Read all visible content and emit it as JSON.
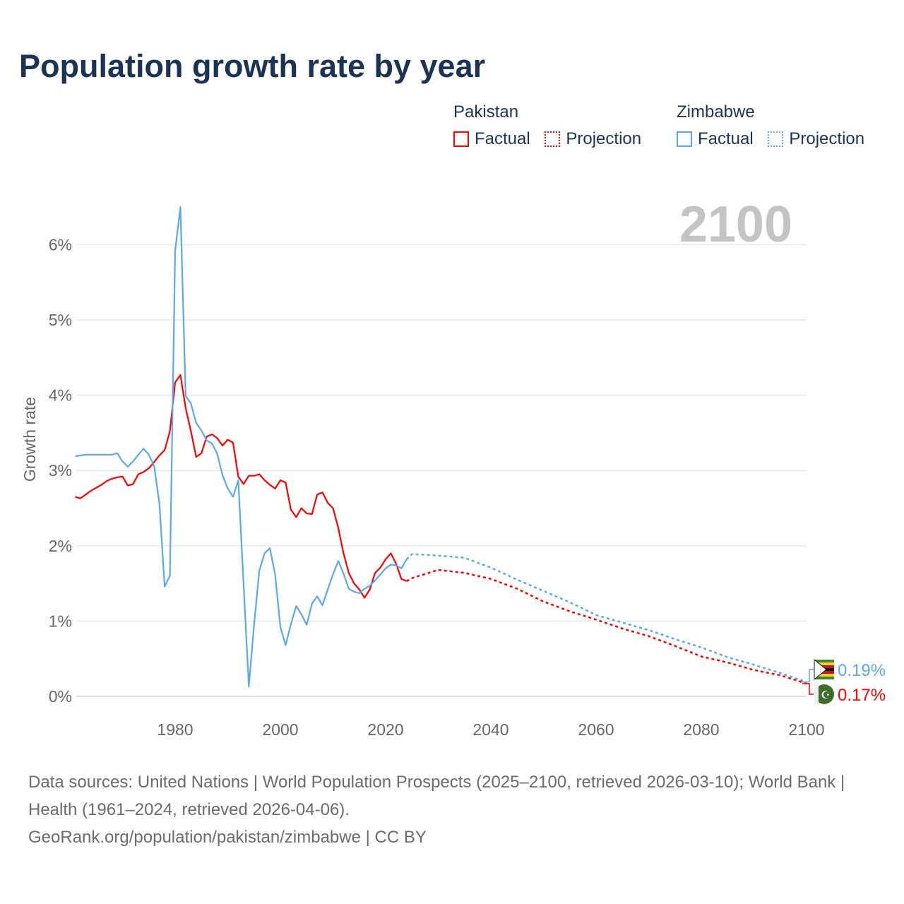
{
  "title": "Population growth rate by year",
  "legend": {
    "groups": [
      {
        "name": "Pakistan",
        "color": "#ff0000",
        "factual": "Factual",
        "projection": "Projection"
      },
      {
        "name": "Zimbabwe",
        "color": "#5aa9ee",
        "factual": "Factual",
        "projection": "Projection"
      }
    ]
  },
  "year_label": "2100",
  "footer": {
    "sources": "Data sources: United Nations | World Population Prospects (2025–2100, retrieved 2026-03-10); World Bank | Health (1961–2024, retrieved 2026-04-06).",
    "credit": "GeoRank.org/population/pakistan/zimbabwe | CC BY"
  },
  "chart_data": {
    "type": "line",
    "title": "Population growth rate by year",
    "xlabel": "",
    "ylabel": "Growth rate",
    "xlim": [
      1961,
      2100
    ],
    "ylim": [
      0,
      6.5
    ],
    "x_ticks": [
      1980,
      2000,
      2020,
      2040,
      2060,
      2080,
      2100
    ],
    "x_tick_labels": [
      "1980",
      "2000",
      "2020",
      "2040",
      "2060",
      "2080",
      "2100"
    ],
    "y_ticks": [
      0,
      1,
      2,
      3,
      4,
      5,
      6
    ],
    "y_tick_labels": [
      "0%",
      "1%",
      "2%",
      "3%",
      "4%",
      "5%",
      "6%"
    ],
    "grid": true,
    "legend_position": "top-right",
    "series": [
      {
        "name": "Pakistan",
        "color": "#ff0000",
        "end_label": "0.17%",
        "factual": {
          "x_start": 1961,
          "values": [
            2.65,
            2.63,
            2.68,
            2.73,
            2.77,
            2.81,
            2.86,
            2.89,
            2.91,
            2.92,
            2.8,
            2.82,
            2.95,
            2.98,
            3.03,
            3.11,
            3.2,
            3.27,
            3.52,
            4.17,
            4.27,
            3.83,
            3.52,
            3.18,
            3.23,
            3.45,
            3.48,
            3.43,
            3.33,
            3.41,
            3.37,
            2.92,
            2.82,
            2.93,
            2.93,
            2.95,
            2.87,
            2.81,
            2.76,
            2.87,
            2.84,
            2.48,
            2.38,
            2.5,
            2.43,
            2.42,
            2.68,
            2.71,
            2.57,
            2.5,
            2.24,
            1.9,
            1.64,
            1.5,
            1.42,
            1.31,
            1.42,
            1.64,
            1.71,
            1.82,
            1.9,
            1.76,
            1.56,
            1.53
          ]
        },
        "projection": {
          "x": [
            2024,
            2025,
            2030,
            2035,
            2040,
            2045,
            2050,
            2055,
            2060,
            2065,
            2070,
            2075,
            2080,
            2085,
            2090,
            2095,
            2100
          ],
          "values": [
            1.53,
            1.57,
            1.68,
            1.64,
            1.56,
            1.43,
            1.26,
            1.13,
            1.02,
            0.9,
            0.8,
            0.67,
            0.53,
            0.45,
            0.35,
            0.28,
            0.17
          ]
        }
      },
      {
        "name": "Zimbabwe",
        "color": "#5aa9ee",
        "end_label": "0.19%",
        "factual": {
          "x_start": 1961,
          "values": [
            3.19,
            3.2,
            3.21,
            3.21,
            3.21,
            3.21,
            3.21,
            3.21,
            3.23,
            3.12,
            3.05,
            3.12,
            3.21,
            3.29,
            3.21,
            3.06,
            2.57,
            1.46,
            1.6,
            5.92,
            6.5,
            3.99,
            3.89,
            3.63,
            3.53,
            3.4,
            3.36,
            3.22,
            2.94,
            2.76,
            2.65,
            2.87,
            1.5,
            0.13,
            0.95,
            1.67,
            1.9,
            1.97,
            1.62,
            0.92,
            0.68,
            0.96,
            1.2,
            1.09,
            0.95,
            1.23,
            1.33,
            1.21,
            1.42,
            1.62,
            1.8,
            1.63,
            1.43,
            1.39,
            1.37,
            1.43,
            1.47,
            1.54,
            1.62,
            1.7,
            1.75,
            1.74,
            1.7,
            1.82
          ]
        },
        "projection": {
          "x": [
            2024,
            2025,
            2030,
            2035,
            2040,
            2045,
            2050,
            2055,
            2060,
            2065,
            2070,
            2075,
            2080,
            2085,
            2090,
            2095,
            2100
          ],
          "values": [
            1.82,
            1.89,
            1.87,
            1.84,
            1.71,
            1.55,
            1.4,
            1.25,
            1.08,
            0.98,
            0.88,
            0.76,
            0.65,
            0.52,
            0.42,
            0.31,
            0.19
          ]
        }
      }
    ]
  }
}
